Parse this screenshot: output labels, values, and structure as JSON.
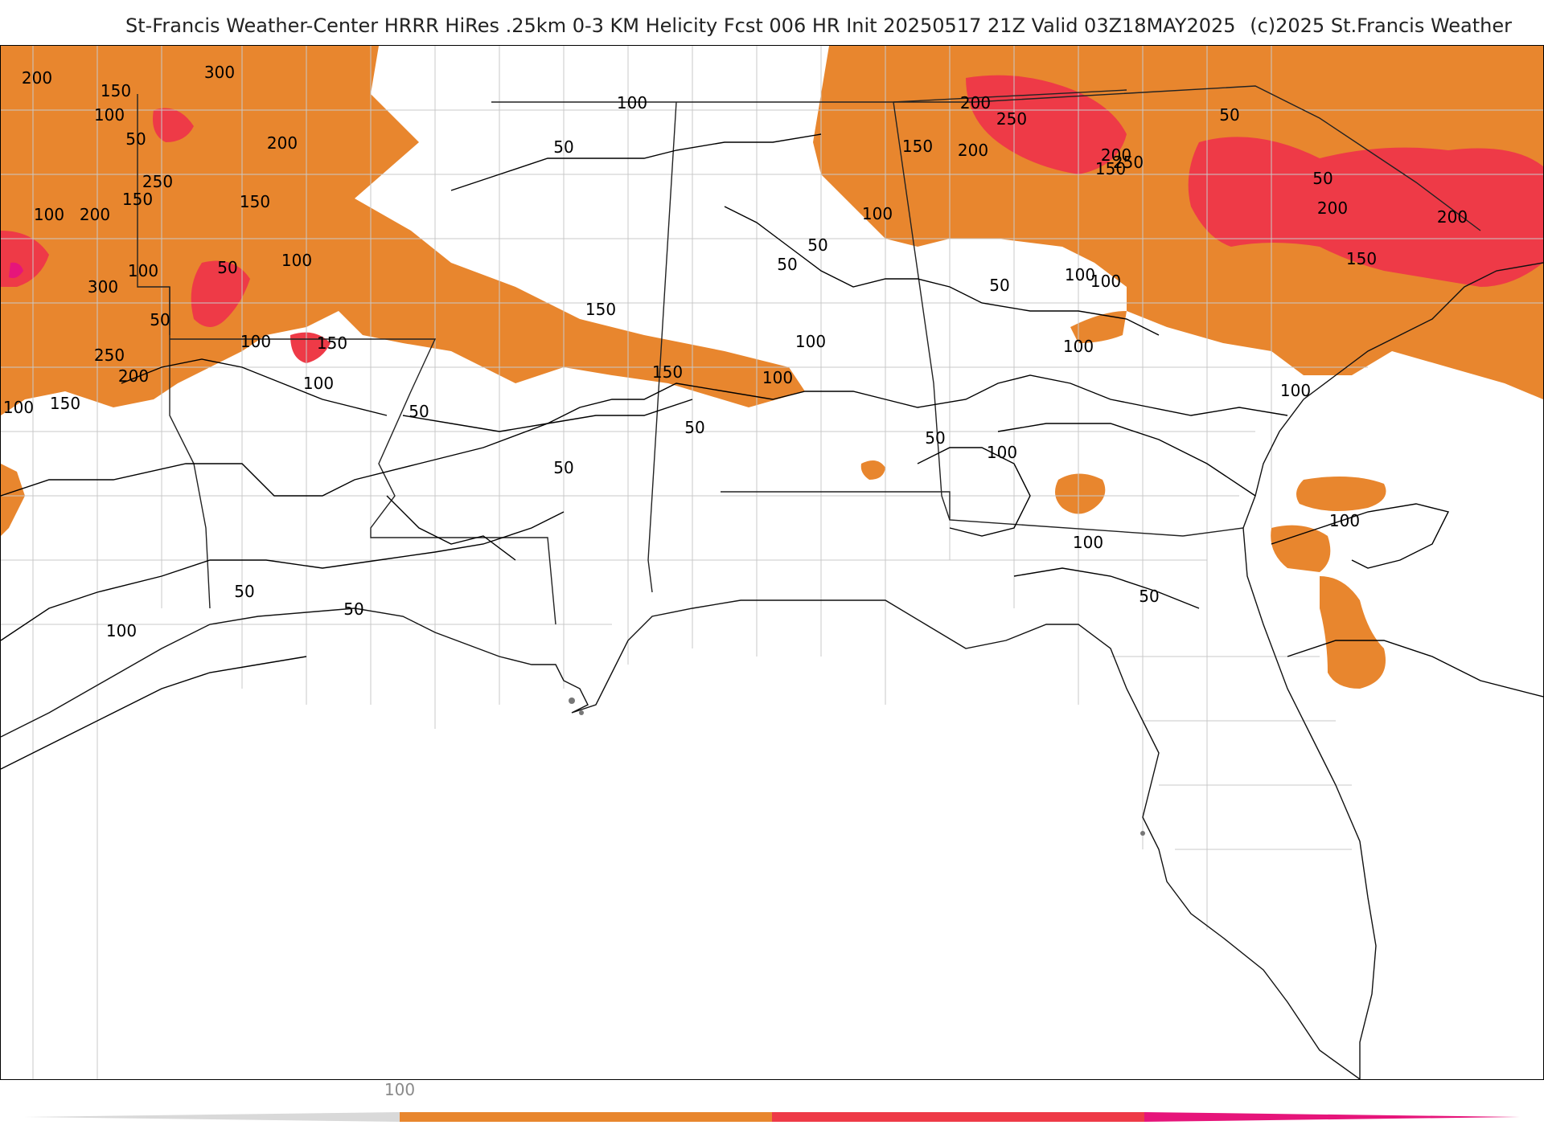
{
  "header": {
    "title": "St-Francis Weather-Center HRRR HiRes .25km 0-3 KM Helicity Fcst 006 HR Init 20250517 21Z  Valid 03Z18MAY2025",
    "copyright": "(c)2025 St.Francis Weather"
  },
  "map": {
    "field": "0-3 KM Helicity",
    "contour_labels": [
      "200",
      "150",
      "100",
      "300",
      "50",
      "250",
      "200",
      "150",
      "100",
      "200",
      "300",
      "100",
      "50",
      "250",
      "200",
      "150",
      "100",
      "50",
      "150",
      "100",
      "100",
      "150",
      "100",
      "50",
      "50",
      "150",
      "150",
      "100",
      "100",
      "50",
      "50",
      "100",
      "50",
      "100",
      "50",
      "50",
      "100",
      "50",
      "50",
      "100",
      "150",
      "200",
      "250",
      "250",
      "200",
      "150",
      "200",
      "200",
      "200",
      "150",
      "100",
      "50",
      "100",
      "100",
      "100",
      "50",
      "100",
      "100",
      "50",
      "50"
    ],
    "fill_colors": {
      "band_100_200": "#e8862e",
      "band_200_300": "#ee3a47",
      "band_300_plus": "#e6157a"
    },
    "contour_color": "#000000",
    "boundary_color": "#c8c8c8"
  },
  "colorbar": {
    "tick_labels": [
      "100"
    ],
    "stops": [
      {
        "color": "#d9d9d9"
      },
      {
        "color": "#e8862e"
      },
      {
        "color": "#ee3a47"
      },
      {
        "color": "#e6157a"
      }
    ]
  }
}
